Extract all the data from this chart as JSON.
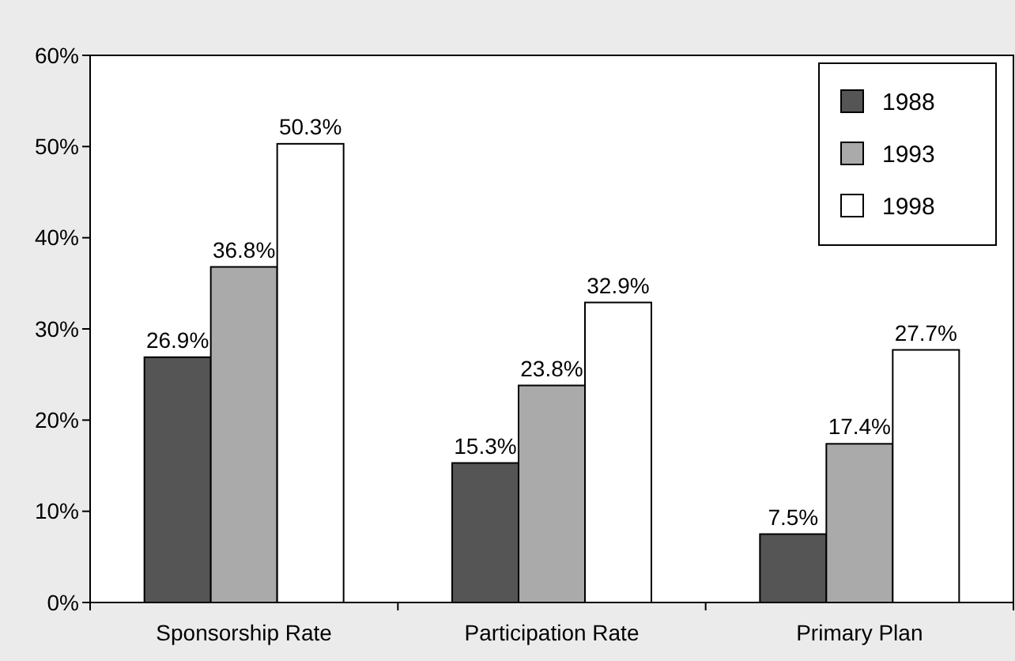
{
  "chart_data": {
    "type": "bar",
    "categories": [
      "Sponsorship Rate",
      "Participation Rate",
      "Primary Plan"
    ],
    "series": [
      {
        "name": "1988",
        "color": "#555555",
        "values": [
          26.9,
          15.3,
          7.5
        ]
      },
      {
        "name": "1993",
        "color": "#aaaaaa",
        "values": [
          36.8,
          23.8,
          17.4
        ]
      },
      {
        "name": "1998",
        "color": "#ffffff",
        "values": [
          50.3,
          32.9,
          27.7
        ]
      }
    ],
    "value_labels": [
      [
        "26.9%",
        "15.3%",
        "7.5%"
      ],
      [
        "36.8%",
        "23.8%",
        "17.4%"
      ],
      [
        "50.3%",
        "32.9%",
        "27.7%"
      ]
    ],
    "ylim": [
      0,
      60
    ],
    "yticks": [
      {
        "value": 0,
        "label": "0%"
      },
      {
        "value": 10,
        "label": "10%"
      },
      {
        "value": 20,
        "label": "20%"
      },
      {
        "value": 30,
        "label": "30%"
      },
      {
        "value": 40,
        "label": "40%"
      },
      {
        "value": 50,
        "label": "50%"
      },
      {
        "value": 60,
        "label": "60%"
      }
    ],
    "grid": false,
    "legend": "top right"
  }
}
